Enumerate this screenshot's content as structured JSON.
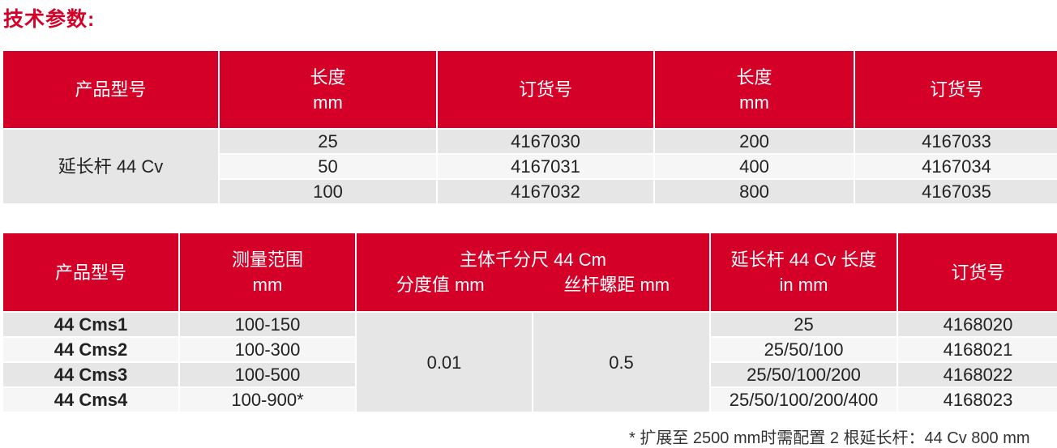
{
  "title": "技术参数:",
  "table1": {
    "headers": [
      "产品型号",
      "长度",
      "mm",
      "订货号",
      "长度",
      "mm",
      "订货号"
    ],
    "product": "延长杆 44 Cv",
    "rows": [
      [
        "25",
        "4167030",
        "200",
        "4167033"
      ],
      [
        "50",
        "4167031",
        "400",
        "4167034"
      ],
      [
        "100",
        "4167032",
        "800",
        "4167035"
      ]
    ]
  },
  "table2": {
    "headers": {
      "model": "产品型号",
      "range": "测量范围",
      "range_unit": "mm",
      "main": "主体千分尺 44 Cm",
      "division": "分度值 mm",
      "pitch": "丝杆螺距 mm",
      "ext": "延长杆 44 Cv 长度",
      "ext_unit": "in mm",
      "order": "订货号"
    },
    "division_value": "0.01",
    "pitch_value": "0.5",
    "rows": [
      {
        "model": "44 Cms1",
        "range": "100-150",
        "ext": "25",
        "order": "4168020"
      },
      {
        "model": "44 Cms2",
        "range": "100-300",
        "ext": "25/50/100",
        "order": "4168021"
      },
      {
        "model": "44 Cms3",
        "range": "100-500",
        "ext": "25/50/100/200",
        "order": "4168022"
      },
      {
        "model": "44 Cms4",
        "range": "100-900*",
        "ext": "25/50/100/200/400",
        "order": "4168023"
      }
    ]
  },
  "footnote": "* 扩展至 2500 mm时需配置 2 根延长杆：44 Cv 800 mm"
}
